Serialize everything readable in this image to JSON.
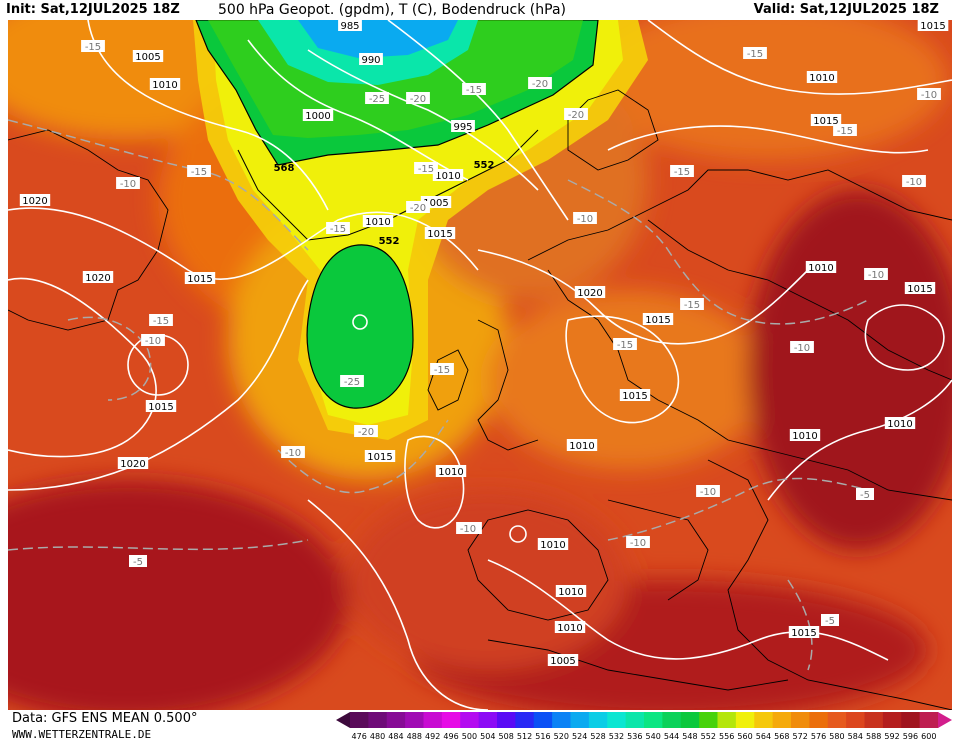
{
  "header": {
    "init": "Init: Sat,12JUL2025 18Z",
    "title": "500 hPa Geopot. (gpdm), T (C), Bodendruck (hPa)",
    "valid": "Valid: Sat,12JUL2025 18Z"
  },
  "footer": {
    "data_source": "Data: GFS ENS MEAN 0.500°",
    "website": "WWW.WETTERZENTRALE.DE"
  },
  "legend": {
    "levels": [
      "476",
      "480",
      "484",
      "488",
      "492",
      "496",
      "500",
      "504",
      "508",
      "512",
      "516",
      "520",
      "524",
      "528",
      "532",
      "536",
      "540",
      "544",
      "548",
      "552",
      "556",
      "560",
      "564",
      "568",
      "572",
      "576",
      "580",
      "584",
      "588",
      "592",
      "596",
      "600"
    ],
    "colors": [
      "#5a0a5a",
      "#6e0a78",
      "#870a96",
      "#a00ab4",
      "#c80ad2",
      "#e60ae6",
      "#b40af0",
      "#8c0af5",
      "#5a0af5",
      "#2828f5",
      "#0a50f5",
      "#0a82f5",
      "#0aaaf0",
      "#0acde6",
      "#0ae6d2",
      "#0ae6aa",
      "#0ae682",
      "#0ad25a",
      "#0ac83c",
      "#46d20a",
      "#b4e60a",
      "#f0f00a",
      "#f5c80a",
      "#f5aa0a",
      "#f08c0a",
      "#eb6e0a",
      "#e65a1e",
      "#dc461e",
      "#c8321e",
      "#b41e1e",
      "#a0141e",
      "#be1e50"
    ]
  },
  "map": {
    "background_color": "#d94a1e",
    "pressure_labels": [
      "985",
      "990",
      "1000",
      "995",
      "1005",
      "1005",
      "1010",
      "1010",
      "1015",
      "1020",
      "1015",
      "1015",
      "1020",
      "1010",
      "1015",
      "1010",
      "1015",
      "1010",
      "1010",
      "1010",
      "1020",
      "1005",
      "1010",
      "1015",
      "1020",
      "1015",
      "1010",
      "1015",
      "1015",
      "1010",
      "1010",
      "1010",
      "1005",
      "1015"
    ],
    "geopotential_labels": [
      "568",
      "552",
      "552"
    ],
    "temperature_labels": [
      "-15",
      "-15",
      "-25",
      "-20",
      "-15",
      "-20",
      "-20",
      "-15",
      "-10",
      "-15",
      "-15",
      "-15",
      "-20",
      "-15",
      "-10",
      "-15",
      "-15",
      "-10",
      "-15",
      "-10",
      "-10",
      "-15",
      "-25",
      "-20",
      "-10",
      "-10",
      "-10",
      "-10",
      "-5",
      "-5",
      "-10",
      "-10",
      "-5",
      "-10"
    ]
  }
}
